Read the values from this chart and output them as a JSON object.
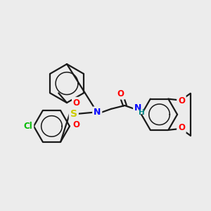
{
  "background_color": "#ececec",
  "bond_color": "#1a1a1a",
  "atom_colors": {
    "N": "#0000ff",
    "O": "#ff0000",
    "S": "#cccc00",
    "Cl": "#00bb00",
    "H": "#008888",
    "C": "#1a1a1a"
  },
  "figsize": [
    3.0,
    3.0
  ],
  "dpi": 100,
  "lw": 1.6,
  "font_size_atom": 9.0,
  "font_size_small": 7.5
}
